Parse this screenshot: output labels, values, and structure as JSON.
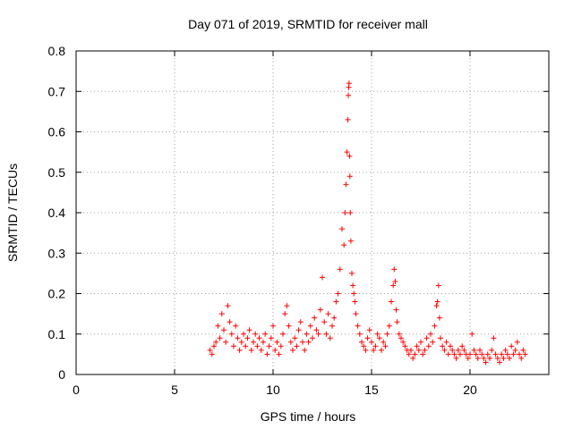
{
  "chart_data": {
    "type": "scatter",
    "title": "Day 071 of 2019, SRMTID for receiver mall",
    "xlabel": "GPS time / hours",
    "ylabel": "SRMTID / TECUs",
    "xlim": [
      0,
      24
    ],
    "ylim": [
      0,
      0.8
    ],
    "xticks": [
      0,
      5,
      10,
      15,
      20
    ],
    "yticks": [
      0,
      0.1,
      0.2,
      0.3,
      0.4,
      0.5,
      0.6,
      0.7,
      0.8
    ],
    "xtick_labels": [
      "0",
      "5",
      "10",
      "15",
      "20"
    ],
    "ytick_labels": [
      "0",
      "0.1",
      "0.2",
      "0.3",
      "0.4",
      "0.5",
      "0.6",
      "0.7",
      "0.8"
    ],
    "grid": true,
    "marker": "+",
    "color": "#ff0000",
    "series": [
      {
        "name": "SRMTID",
        "x": [
          6.8,
          6.9,
          7.0,
          7.1,
          7.2,
          7.3,
          7.4,
          7.5,
          7.6,
          7.7,
          7.8,
          7.9,
          8.0,
          8.1,
          8.2,
          8.3,
          8.4,
          8.5,
          8.6,
          8.7,
          8.8,
          8.9,
          9.0,
          9.1,
          9.2,
          9.3,
          9.4,
          9.5,
          9.6,
          9.7,
          9.8,
          9.9,
          10.0,
          10.1,
          10.2,
          10.3,
          10.4,
          10.5,
          10.6,
          10.7,
          10.8,
          10.9,
          11.0,
          11.1,
          11.2,
          11.3,
          11.4,
          11.5,
          11.6,
          11.7,
          11.8,
          11.9,
          12.0,
          12.1,
          12.2,
          12.3,
          12.4,
          12.5,
          12.6,
          12.7,
          12.8,
          12.9,
          13.0,
          13.1,
          13.2,
          13.3,
          13.4,
          13.5,
          13.6,
          13.65,
          13.7,
          13.75,
          13.8,
          13.82,
          13.84,
          13.86,
          13.88,
          13.9,
          13.92,
          13.95,
          14.0,
          14.05,
          14.1,
          14.15,
          14.2,
          14.3,
          14.4,
          14.5,
          14.6,
          14.7,
          14.8,
          14.9,
          15.0,
          15.1,
          15.2,
          15.3,
          15.4,
          15.5,
          15.6,
          15.7,
          15.8,
          15.9,
          16.0,
          16.1,
          16.15,
          16.2,
          16.25,
          16.3,
          16.4,
          16.5,
          16.6,
          16.7,
          16.8,
          16.9,
          17.0,
          17.1,
          17.2,
          17.3,
          17.4,
          17.5,
          17.6,
          17.7,
          17.8,
          17.9,
          18.0,
          18.1,
          18.2,
          18.3,
          18.35,
          18.4,
          18.45,
          18.5,
          18.6,
          18.7,
          18.8,
          18.9,
          19.0,
          19.1,
          19.2,
          19.3,
          19.4,
          19.5,
          19.6,
          19.7,
          19.8,
          19.9,
          20.0,
          20.1,
          20.2,
          20.3,
          20.4,
          20.5,
          20.6,
          20.7,
          20.8,
          20.9,
          21.0,
          21.1,
          21.2,
          21.3,
          21.4,
          21.5,
          21.6,
          21.7,
          21.8,
          21.9,
          22.0,
          22.1,
          22.2,
          22.3,
          22.4,
          22.5,
          22.6,
          22.7,
          22.8
        ],
        "y": [
          0.06,
          0.05,
          0.07,
          0.08,
          0.12,
          0.09,
          0.15,
          0.11,
          0.08,
          0.17,
          0.13,
          0.1,
          0.07,
          0.12,
          0.09,
          0.06,
          0.08,
          0.1,
          0.07,
          0.09,
          0.11,
          0.06,
          0.08,
          0.1,
          0.07,
          0.09,
          0.06,
          0.08,
          0.1,
          0.05,
          0.07,
          0.09,
          0.12,
          0.06,
          0.08,
          0.05,
          0.07,
          0.1,
          0.15,
          0.17,
          0.12,
          0.08,
          0.06,
          0.09,
          0.07,
          0.11,
          0.13,
          0.08,
          0.06,
          0.1,
          0.08,
          0.12,
          0.09,
          0.14,
          0.11,
          0.1,
          0.16,
          0.24,
          0.13,
          0.1,
          0.15,
          0.09,
          0.12,
          0.14,
          0.18,
          0.2,
          0.26,
          0.36,
          0.32,
          0.4,
          0.47,
          0.55,
          0.63,
          0.69,
          0.71,
          0.72,
          0.54,
          0.49,
          0.4,
          0.33,
          0.25,
          0.22,
          0.2,
          0.18,
          0.15,
          0.12,
          0.1,
          0.08,
          0.07,
          0.06,
          0.09,
          0.11,
          0.08,
          0.06,
          0.07,
          0.1,
          0.09,
          0.06,
          0.08,
          0.07,
          0.1,
          0.12,
          0.18,
          0.22,
          0.26,
          0.23,
          0.16,
          0.13,
          0.1,
          0.09,
          0.08,
          0.07,
          0.06,
          0.05,
          0.06,
          0.04,
          0.05,
          0.07,
          0.06,
          0.08,
          0.05,
          0.06,
          0.09,
          0.07,
          0.1,
          0.08,
          0.12,
          0.17,
          0.18,
          0.22,
          0.14,
          0.09,
          0.07,
          0.06,
          0.08,
          0.05,
          0.07,
          0.06,
          0.05,
          0.04,
          0.06,
          0.05,
          0.07,
          0.06,
          0.05,
          0.04,
          0.05,
          0.1,
          0.06,
          0.05,
          0.04,
          0.06,
          0.05,
          0.04,
          0.03,
          0.05,
          0.04,
          0.06,
          0.09,
          0.05,
          0.04,
          0.03,
          0.05,
          0.04,
          0.06,
          0.05,
          0.04,
          0.07,
          0.05,
          0.06,
          0.08,
          0.05,
          0.04,
          0.06,
          0.05
        ]
      }
    ]
  }
}
